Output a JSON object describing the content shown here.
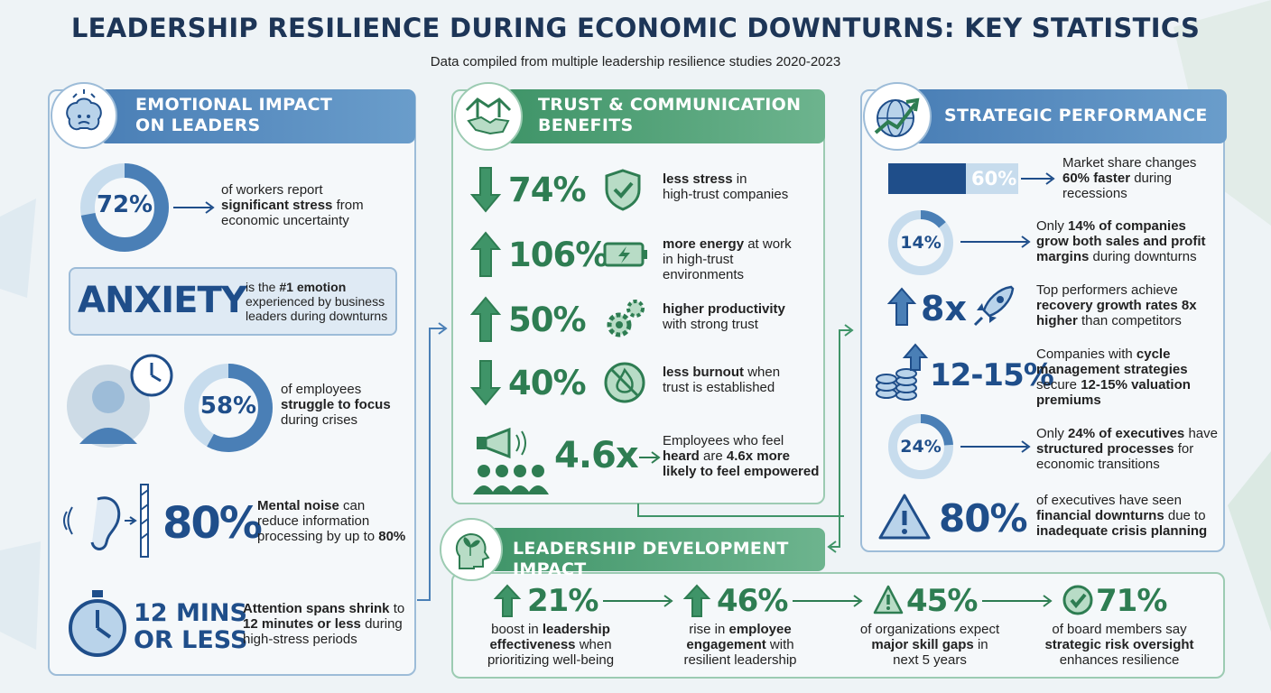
{
  "header": {
    "title": "LEADERSHIP RESILIENCE DURING ECONOMIC DOWNTURNS: KEY STATISTICS",
    "subtitle": "Data compiled from multiple leadership resilience studies 2020-2023"
  },
  "colors": {
    "blue_accent": "#1f4e8a",
    "blue_banner": "#4a7fb6",
    "green_accent": "#2e7d52",
    "green_banner": "#3f9468",
    "ring_track": "#c7dced"
  },
  "emotional": {
    "heading_1": "EMOTIONAL IMPACT",
    "heading_2": "ON LEADERS",
    "icon": "stressed-brain-icon",
    "stat1": {
      "value": "72%",
      "percent": 72,
      "pre": "of workers report",
      "bold": "significant stress",
      "post": "from",
      "line3": "economic uncertainty"
    },
    "anxiety": {
      "word": "ANXIETY",
      "pre": "is the",
      "bold": "#1 emotion",
      "line2": "experienced by business",
      "line3": "leaders during downturns"
    },
    "stat2": {
      "value": "58%",
      "percent": 58,
      "line1": "of employees",
      "bold": "struggle to focus",
      "line3": "during crises"
    },
    "stat3": {
      "value": "80%",
      "bold": "Mental noise",
      "post": "can",
      "line2": "reduce information",
      "line3_pre": "processing by up to",
      "line3_bold": "80%"
    },
    "stat4": {
      "value_1": "12 MINS",
      "value_2": "OR LESS",
      "bold1": "Attention spans shrink",
      "post1": "to",
      "bold2": "12 minutes or less",
      "post2": "during",
      "line3": "high-stress periods"
    }
  },
  "trust": {
    "heading_1": "TRUST & COMMUNICATION",
    "heading_2": "BENEFITS",
    "icon": "handshake-bridge-icon",
    "items": [
      {
        "value": "74%",
        "direction": "down",
        "icon": "shield-check-icon",
        "bold": "less stress",
        "post": "in",
        "line2": "high-trust companies"
      },
      {
        "value": "106%",
        "direction": "up",
        "icon": "battery-icon",
        "bold": "more energy",
        "post": "at work",
        "line2": "in high-trust",
        "line3": "environments"
      },
      {
        "value": "50%",
        "direction": "up",
        "icon": "gears-icon",
        "bold": "higher productivity",
        "post": "",
        "line2": "with strong trust"
      },
      {
        "value": "40%",
        "direction": "down",
        "icon": "no-fire-icon",
        "bold": "less burnout",
        "post": "when",
        "line2": "trust is established"
      }
    ],
    "heard": {
      "value": "4.6x",
      "line1": "Employees who feel",
      "bold1": "heard",
      "mid": "are",
      "bold2": "4.6x more",
      "bold3": "likely to feel empowered"
    }
  },
  "strategic": {
    "heading": "STRATEGIC PERFORMANCE",
    "icon": "globe-growth-icon",
    "bar": {
      "value": "60%",
      "percent": 60,
      "line1": "Market share changes",
      "bold": "60% faster",
      "post": "during",
      "line3": "recessions"
    },
    "s1": {
      "value": "14%",
      "percent": 14,
      "pre": "Only",
      "bold1": "14% of companies",
      "bold2": "grow both sales and profit",
      "bold3": "margins",
      "post": "during downturns"
    },
    "s2": {
      "value": "8x",
      "line1": "Top performers achieve",
      "bold1": "recovery growth rates 8x",
      "bold2": "higher",
      "post": "than competitors"
    },
    "s3": {
      "value": "12-15%",
      "pre": "Companies with",
      "bold1": "cycle",
      "bold2": "management strategies",
      "pre3": "secure",
      "bold3": "12-15% valuation",
      "bold4": "premiums"
    },
    "s4": {
      "value": "24%",
      "percent": 24,
      "pre": "Only",
      "bold1": "24% of executives",
      "post1": "have",
      "bold2": "structured processes",
      "post2": "for",
      "line3": "economic transitions"
    },
    "s5": {
      "value": "80%",
      "line1": "of executives have seen",
      "bold1": "financial downturns",
      "post1": "due to",
      "bold2": "inadequate crisis planning"
    }
  },
  "development": {
    "heading": "LEADERSHIP DEVELOPMENT IMPACT",
    "icon": "head-sprout-icon",
    "items": [
      {
        "value": "21%",
        "icon": "arrow-up-icon",
        "l1_pre": "boost in",
        "l1_bold": "leadership",
        "l2_bold": "effectiveness",
        "l2_post": "when",
        "l3": "prioritizing well-being"
      },
      {
        "value": "46%",
        "icon": "arrow-up-icon",
        "l1_pre": "rise in",
        "l1_bold": "employee",
        "l2_bold": "engagement",
        "l2_post": "with",
        "l3": "resilient leadership"
      },
      {
        "value": "45%",
        "icon": "warning-icon",
        "l1_pre": "of organizations expect",
        "l1_bold": "",
        "l2_bold": "major skill gaps",
        "l2_post": "in",
        "l3": "next 5 years"
      },
      {
        "value": "71%",
        "icon": "check-circle-icon",
        "l1_pre": "of board members say",
        "l1_bold": "",
        "l2_bold": "strategic risk oversight",
        "l2_post": "",
        "l3": "enhances resilience"
      }
    ]
  }
}
